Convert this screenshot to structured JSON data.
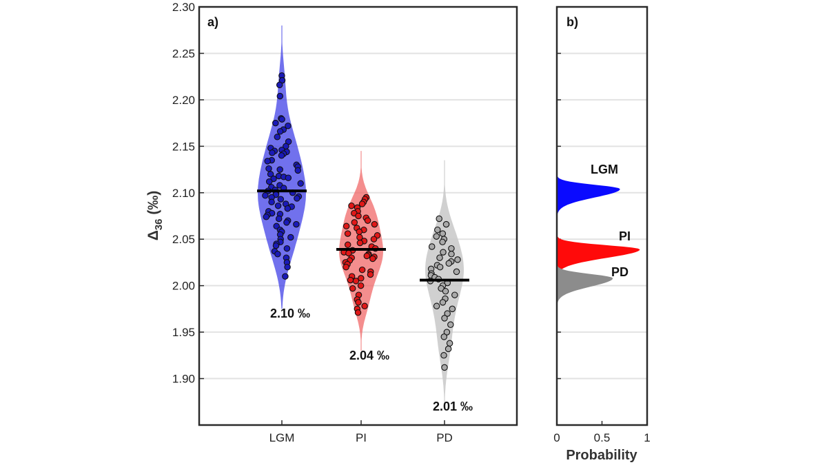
{
  "chart_data": [
    {
      "type": "violin",
      "panel_label": "a)",
      "ylabel": "Δ36 (‰)",
      "ylabel_main": "Δ",
      "ylabel_sub": "36",
      "ylabel_unit": " (‰)",
      "ylim": [
        1.85,
        2.3
      ],
      "yticks": [
        "2.30",
        "2.25",
        "2.20",
        "2.15",
        "2.10",
        "2.05",
        "2.00",
        "1.95",
        "1.90"
      ],
      "ytick_values": [
        2.3,
        2.25,
        2.2,
        2.15,
        2.1,
        2.05,
        2.0,
        1.95,
        1.9
      ],
      "grid": true,
      "categories": [
        "LGM",
        "PI",
        "PD"
      ],
      "series": [
        {
          "name": "LGM",
          "color": "#3a3ae6",
          "point_color": "#1a1ab8",
          "median": 2.102,
          "median_label": "2.10 ‰",
          "range": [
            1.975,
            2.28
          ],
          "values": [
            2.226,
            2.221,
            2.216,
            2.204,
            2.18,
            2.179,
            2.175,
            2.172,
            2.168,
            2.166,
            2.16,
            2.155,
            2.15,
            2.148,
            2.146,
            2.145,
            2.144,
            2.143,
            2.142,
            2.14,
            2.135,
            2.134,
            2.13,
            2.128,
            2.126,
            2.125,
            2.124,
            2.12,
            2.118,
            2.117,
            2.116,
            2.115,
            2.112,
            2.11,
            2.108,
            2.106,
            2.105,
            2.103,
            2.102,
            2.1,
            2.099,
            2.098,
            2.097,
            2.096,
            2.095,
            2.094,
            2.093,
            2.09,
            2.088,
            2.086,
            2.085,
            2.083,
            2.08,
            2.078,
            2.077,
            2.076,
            2.074,
            2.072,
            2.07,
            2.068,
            2.066,
            2.064,
            2.06,
            2.058,
            2.055,
            2.052,
            2.05,
            2.047,
            2.045,
            2.043,
            2.04,
            2.037,
            2.034,
            2.03,
            2.025,
            2.02,
            2.01
          ]
        },
        {
          "name": "PI",
          "color": "#f06262",
          "point_color": "#e01818",
          "median": 2.039,
          "median_label": "2.04 ‰",
          "range": [
            1.93,
            2.145
          ],
          "values": [
            2.095,
            2.093,
            2.09,
            2.088,
            2.086,
            2.084,
            2.08,
            2.078,
            2.075,
            2.073,
            2.07,
            2.068,
            2.066,
            2.064,
            2.062,
            2.06,
            2.058,
            2.056,
            2.054,
            2.052,
            2.05,
            2.048,
            2.046,
            2.044,
            2.042,
            2.04,
            2.038,
            2.036,
            2.035,
            2.034,
            2.033,
            2.032,
            2.031,
            2.03,
            2.029,
            2.027,
            2.025,
            2.023,
            2.02,
            2.017,
            2.015,
            2.012,
            2.01,
            2.008,
            2.006,
            2.005,
            2.0,
            1.997,
            1.99,
            1.985,
            1.982,
            1.978,
            1.975,
            1.971
          ]
        },
        {
          "name": "PD",
          "color": "#c8c8c8",
          "point_color": "#a9a9a9",
          "median": 2.006,
          "median_label": "2.01 ‰",
          "range": [
            1.87,
            2.135
          ],
          "values": [
            2.072,
            2.066,
            2.06,
            2.056,
            2.053,
            2.05,
            2.047,
            2.042,
            2.04,
            2.036,
            2.034,
            2.03,
            2.028,
            2.026,
            2.024,
            2.022,
            2.02,
            2.018,
            2.015,
            2.013,
            2.011,
            2.009,
            2.007,
            2.005,
            2.003,
            2.0,
            1.997,
            1.994,
            1.99,
            1.986,
            1.982,
            1.978,
            1.975,
            1.97,
            1.965,
            1.958,
            1.95,
            1.945,
            1.938,
            1.932,
            1.925,
            1.912
          ]
        }
      ]
    },
    {
      "type": "area",
      "panel_label": "b)",
      "xlabel": "Probability",
      "xlim": [
        0,
        1
      ],
      "xticks": [
        "0",
        "0.5",
        "1"
      ],
      "xtick_values": [
        0,
        0.5,
        1
      ],
      "ylim": [
        1.85,
        2.3
      ],
      "grid": true,
      "series": [
        {
          "name": "LGM",
          "color": "#0a0aff",
          "mean": 2.104,
          "peak": 0.7
        },
        {
          "name": "PI",
          "color": "#ff0a0a",
          "mean": 2.039,
          "peak": 0.92
        },
        {
          "name": "PD",
          "color": "#8c8c8c",
          "mean": 2.008,
          "peak": 0.62
        }
      ]
    }
  ]
}
